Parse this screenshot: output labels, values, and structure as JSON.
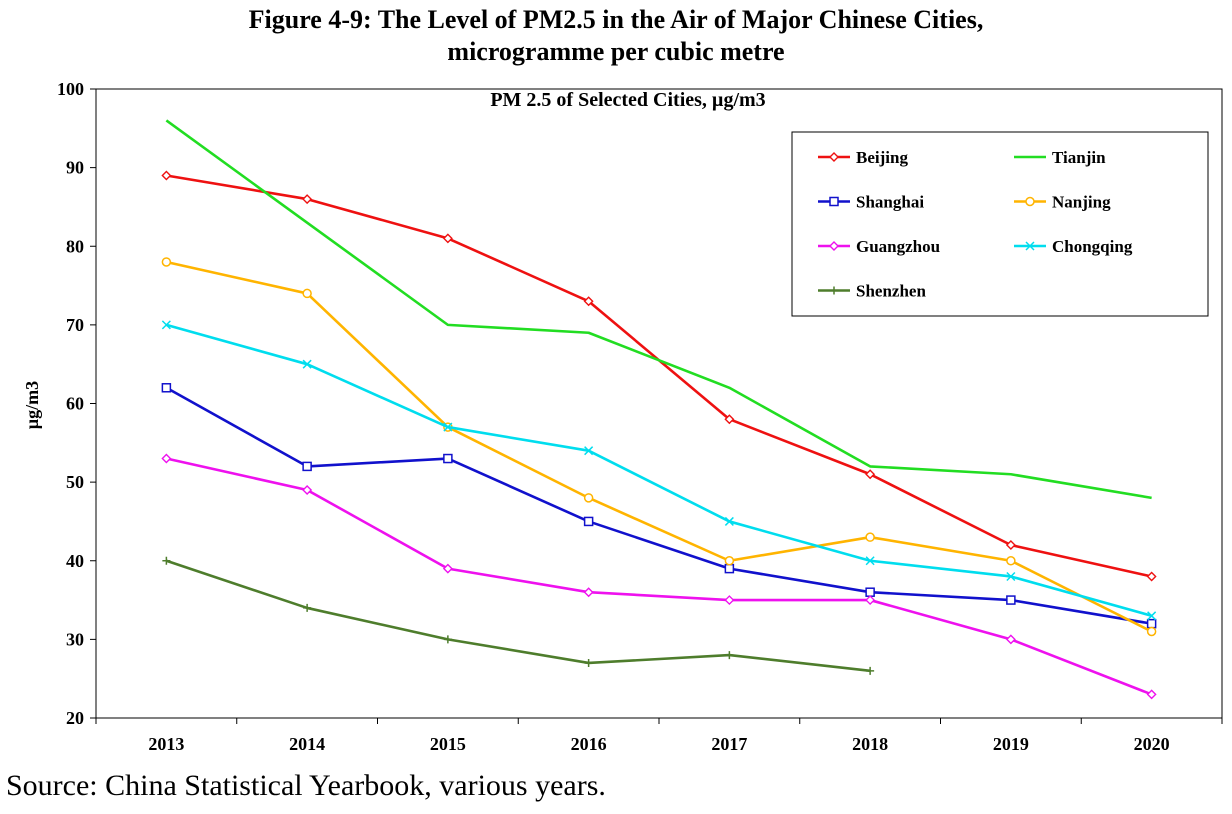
{
  "figure": {
    "title_line1": "Figure 4-9: The Level of PM2.5 in the Air of Major Chinese Cities,",
    "title_line2": "microgramme per cubic metre",
    "source": "Source: China Statistical Yearbook, various years."
  },
  "chart_data": {
    "type": "line",
    "title": "PM 2.5 of Selected Cities, µg/m3",
    "xlabel": "",
    "ylabel": "µg/m3",
    "categories": [
      "2013",
      "2014",
      "2015",
      "2016",
      "2017",
      "2018",
      "2019",
      "2020"
    ],
    "ylim": [
      20,
      100
    ],
    "yticks": [
      20,
      30,
      40,
      50,
      60,
      70,
      80,
      90,
      100
    ],
    "grid": false,
    "legend_position": "top-right",
    "series": [
      {
        "name": "Beijing",
        "color": "#ee1111",
        "marker": "diamond",
        "values": [
          89,
          86,
          81,
          73,
          58,
          51,
          42,
          38
        ]
      },
      {
        "name": "Tianjin",
        "color": "#22dd22",
        "marker": "none",
        "values": [
          96,
          83,
          70,
          69,
          62,
          52,
          51,
          48
        ]
      },
      {
        "name": "Shanghai",
        "color": "#1111cc",
        "marker": "square",
        "values": [
          62,
          52,
          53,
          45,
          39,
          36,
          35,
          32
        ]
      },
      {
        "name": "Nanjing",
        "color": "#ffb400",
        "marker": "circle",
        "values": [
          78,
          74,
          57,
          48,
          40,
          43,
          40,
          31
        ]
      },
      {
        "name": "Guangzhou",
        "color": "#ee11ee",
        "marker": "diamond",
        "values": [
          53,
          49,
          39,
          36,
          35,
          35,
          30,
          23
        ]
      },
      {
        "name": "Chongqing",
        "color": "#00ddee",
        "marker": "x",
        "values": [
          70,
          65,
          57,
          54,
          45,
          40,
          38,
          33
        ]
      },
      {
        "name": "Shenzhen",
        "color": "#4e7d2c",
        "marker": "plus",
        "values": [
          40,
          34,
          30,
          27,
          28,
          26,
          null,
          null
        ]
      }
    ]
  }
}
